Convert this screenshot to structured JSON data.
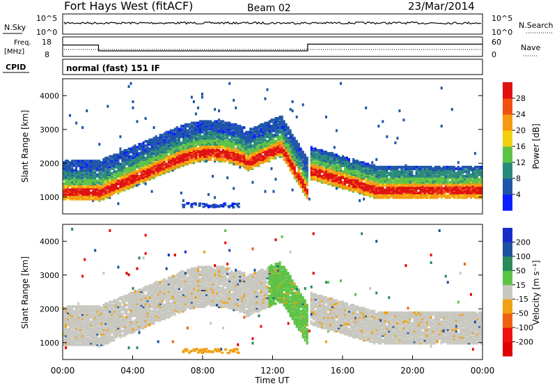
{
  "header": {
    "station": "Fort Hays West (fitACF)",
    "beam": "Beam 02",
    "date": "23/Mar/2014"
  },
  "status_panels": {
    "nsky_label": "N.Sky",
    "nsky_ticks": [
      "10^5",
      "10^0"
    ],
    "nsearch_label": "N.Search",
    "nsearch_ticks": [
      "10^5",
      "10^0"
    ],
    "freq_label_1": "Freq.",
    "freq_label_2": "[MHz]",
    "freq_ticks": [
      "18",
      "8"
    ],
    "nave_label": "Nave",
    "nave_ticks": [
      "60",
      "0"
    ],
    "cpid_label": "CPID",
    "cpid_text": "normal (fast) 151 IF",
    "freq_series_mhz": {
      "time_h": [
        0,
        2.05,
        2.05,
        14.0,
        14.0,
        24
      ],
      "value": [
        14,
        14,
        10.5,
        10.5,
        14.5,
        14.5
      ]
    },
    "nave_level": 20
  },
  "chart_data": [
    {
      "type": "heatmap",
      "title": "",
      "xlabel": "",
      "ylabel": "Slant Range [km]",
      "yticks": [
        "1000",
        "2000",
        "3000",
        "4000"
      ],
      "ylim": [
        500,
        4500
      ],
      "xlim_hours": [
        0,
        24
      ],
      "colorbar_label": "Power [dB]",
      "colorbar_ticks": [
        "4",
        "8",
        "12",
        "16",
        "20",
        "24",
        "28"
      ],
      "colorbar_colors": [
        "#0a1eff",
        "#1e55a8",
        "#2a8a7a",
        "#5ec246",
        "#f0d010",
        "#f59a10",
        "#f05010",
        "#e01010"
      ],
      "colorbar_range": [
        0,
        32
      ]
    },
    {
      "type": "heatmap",
      "title": "",
      "xlabel": "Time UT",
      "ylabel": "Slant Range [km]",
      "yticks": [
        "1000",
        "2000",
        "3000",
        "4000"
      ],
      "ylim": [
        500,
        4500
      ],
      "xlim_hours": [
        0,
        24
      ],
      "xticks": [
        "00:00",
        "04:00",
        "08:00",
        "12:00",
        "16:00",
        "20:00",
        "00:00"
      ],
      "colorbar_label": "Velocity [m s⁻¹]",
      "colorbar_ticks": [
        "200",
        "100",
        "50",
        "15",
        "-15",
        "-50",
        "-100",
        "-200"
      ],
      "colorbar_colors": [
        "#1a2cc8",
        "#2050a0",
        "#2a8a5a",
        "#5ec246",
        "#c8c8c0",
        "#f0a010",
        "#f06010",
        "#f01010",
        "#e00000"
      ]
    }
  ]
}
